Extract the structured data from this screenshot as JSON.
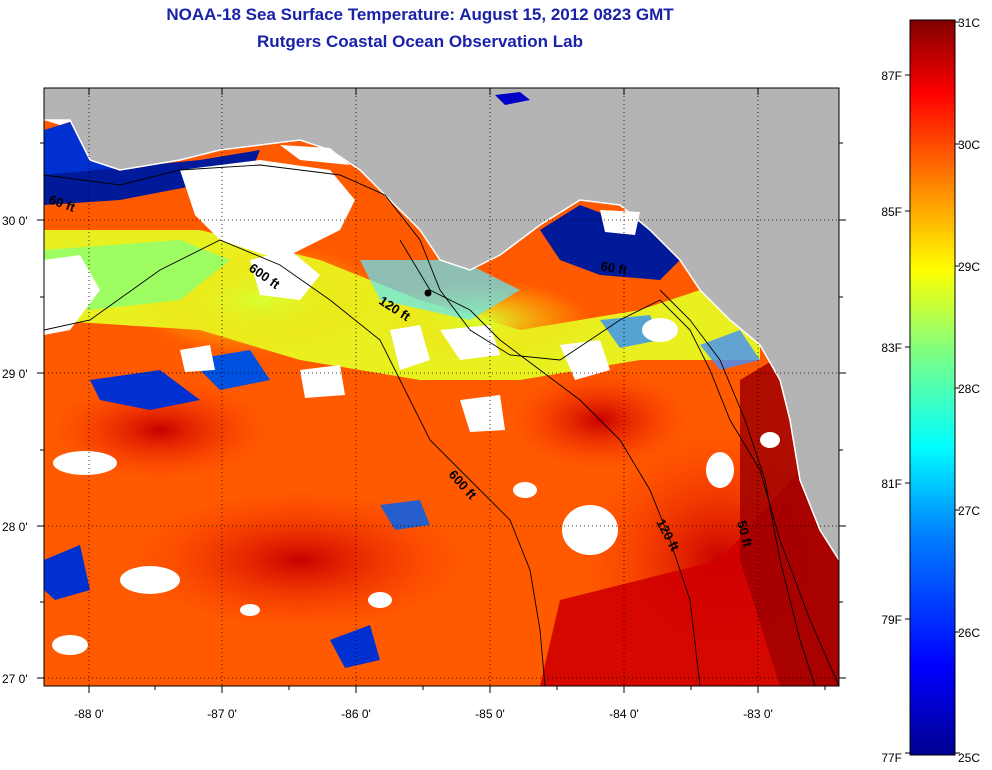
{
  "title": "NOAA-18 Sea Surface Temperature:  August 15, 2012 0823 GMT",
  "subtitle": "Rutgers Coastal Ocean Observation Lab",
  "lat_labels": [
    "30 0'",
    "29 0'",
    "28 0'",
    "27 0'"
  ],
  "lon_labels": [
    "-88 0'",
    "-87 0'",
    "-86 0'",
    "-85 0'",
    "-84 0'",
    "-83 0'"
  ],
  "contour_labels": [
    "60 ft",
    "600 ft",
    "120 ft",
    "60 ft",
    "600 ft",
    "120 ft",
    "50 ft"
  ],
  "colorbar": {
    "celsius_labels": [
      "31C",
      "30C",
      "29C",
      "28C",
      "27C",
      "26C",
      "25C"
    ],
    "fahrenheit_labels": [
      "87F",
      "85F",
      "83F",
      "81F",
      "79F",
      "77F"
    ],
    "colors": [
      "#7f0000",
      "#ff0000",
      "#ff8000",
      "#ffff00",
      "#80ff80",
      "#00ffff",
      "#0080ff",
      "#0000ff",
      "#00008f"
    ]
  },
  "colors": {
    "land": "#b4b4b4",
    "cloud": "#ffffff",
    "title": "#1a22a8"
  }
}
